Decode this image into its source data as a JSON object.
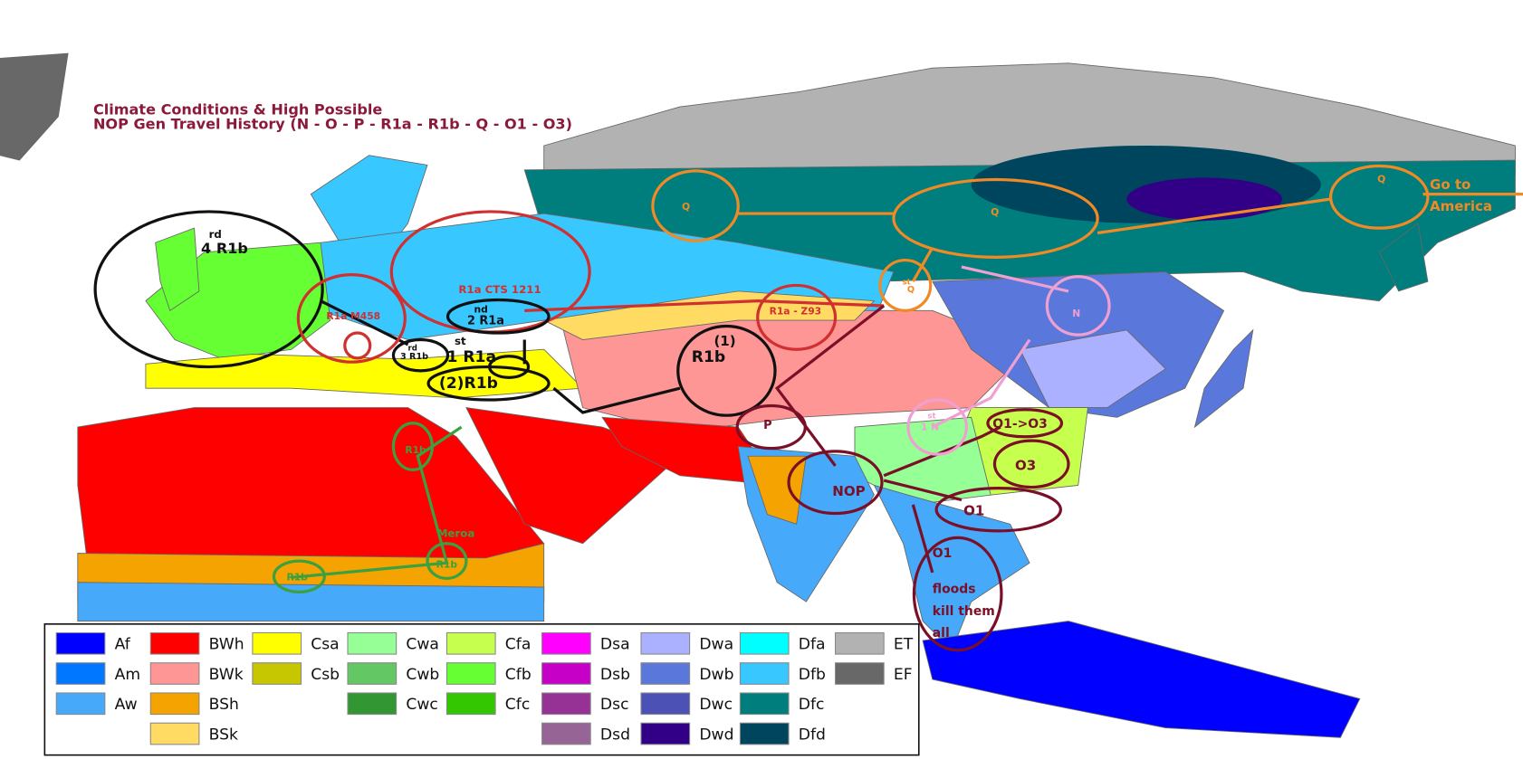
{
  "title": {
    "line1": "Climate Conditions & High Possible",
    "line2": "NOP Gen Travel History (N - O - P - R1a - R1b - Q - O1 - O3)"
  },
  "labels": [
    "Q",
    "Q",
    "Q",
    "Go to",
    "America",
    "rd",
    "4 R1b",
    "R1a CTS 1211",
    "R1a M458",
    "nd",
    "2 R1a",
    "st",
    "1 R1a",
    "rd",
    "3 R1b",
    "(2)R1b",
    "(1)",
    "R1b",
    "R1a - Z93",
    "st",
    "Q",
    "N",
    "P",
    "st",
    "1 N",
    "O1->O3",
    "O3",
    "NOP",
    "O1",
    "O1",
    "floods",
    "kill them",
    "all",
    "R1b",
    "Meroa",
    "R1b",
    "R1b"
  ],
  "legend": [
    {
      "code": "Af",
      "color": "#0000fe"
    },
    {
      "code": "Am",
      "color": "#0077ff"
    },
    {
      "code": "Aw",
      "color": "#46a9fa"
    },
    {
      "code": "BWh",
      "color": "#fe0000"
    },
    {
      "code": "BWk",
      "color": "#fe9695"
    },
    {
      "code": "BSh",
      "color": "#f5a301"
    },
    {
      "code": "BSk",
      "color": "#ffdb63"
    },
    {
      "code": "Csa",
      "color": "#ffff00"
    },
    {
      "code": "Csb",
      "color": "#c6c700"
    },
    {
      "code": "Cwa",
      "color": "#96ff96"
    },
    {
      "code": "Cwb",
      "color": "#63c764"
    },
    {
      "code": "Cwc",
      "color": "#329633"
    },
    {
      "code": "Cfa",
      "color": "#c6ff4e"
    },
    {
      "code": "Cfb",
      "color": "#66ff33"
    },
    {
      "code": "Cfc",
      "color": "#33c701"
    },
    {
      "code": "Dsa",
      "color": "#ff00fe"
    },
    {
      "code": "Dsb",
      "color": "#c600c7"
    },
    {
      "code": "Dsc",
      "color": "#963295"
    },
    {
      "code": "Dsd",
      "color": "#966495"
    },
    {
      "code": "Dwa",
      "color": "#abb1ff"
    },
    {
      "code": "Dwb",
      "color": "#5a77db"
    },
    {
      "code": "Dwc",
      "color": "#4c51b5"
    },
    {
      "code": "Dwd",
      "color": "#320087"
    },
    {
      "code": "Dfa",
      "color": "#00ffff"
    },
    {
      "code": "Dfb",
      "color": "#38c7ff"
    },
    {
      "code": "Dfc",
      "color": "#007e7d"
    },
    {
      "code": "Dfd",
      "color": "#00455e"
    },
    {
      "code": "ET",
      "color": "#b2b2b2"
    },
    {
      "code": "EF",
      "color": "#686868"
    }
  ]
}
